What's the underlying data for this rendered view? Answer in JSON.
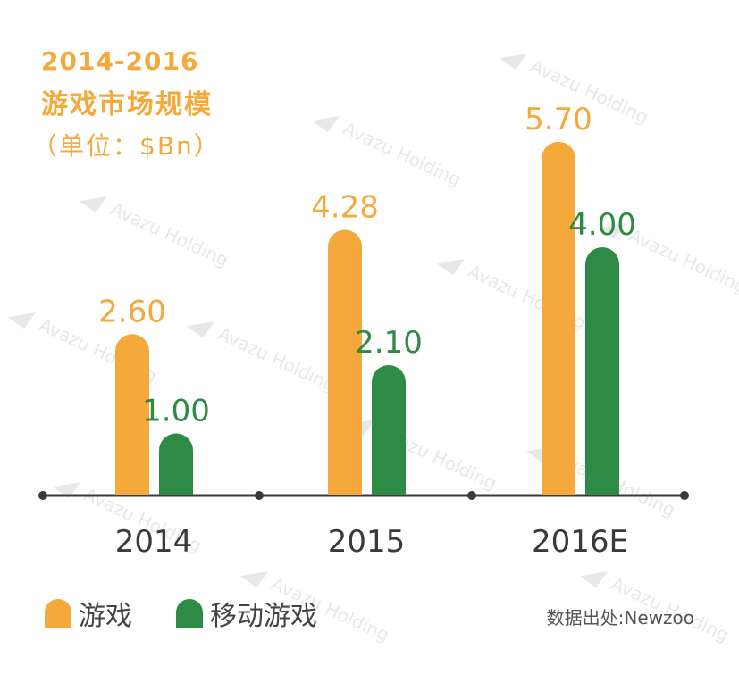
{
  "chart_data": {
    "type": "bar",
    "title": "2014-2016",
    "subtitle": "游戏市场规模",
    "unit_label": "（单位：$Bn）",
    "categories": [
      "2014",
      "2015",
      "2016E"
    ],
    "series": [
      {
        "name": "游戏",
        "values": [
          2.6,
          4.28,
          5.7
        ],
        "labels": [
          "2.60",
          "4.28",
          "5.70"
        ],
        "color": "#f5a93a",
        "label_color": "#f5a93a"
      },
      {
        "name": "移动游戏",
        "values": [
          1.0,
          2.1,
          4.0
        ],
        "labels": [
          "1.00",
          "2.10",
          "4.00"
        ],
        "color": "#2e8b45",
        "label_color": "#2e8b45"
      }
    ],
    "ylim": [
      0,
      6.0
    ],
    "grid": false,
    "legend_position": "bottom-left",
    "source": "数据出处:Newzoo",
    "watermark_text": "Avazu Holding"
  },
  "colors": {
    "axis": "#3a3a3a",
    "tick_text": "#3a3a3a",
    "watermark": "#e8e8e8"
  }
}
